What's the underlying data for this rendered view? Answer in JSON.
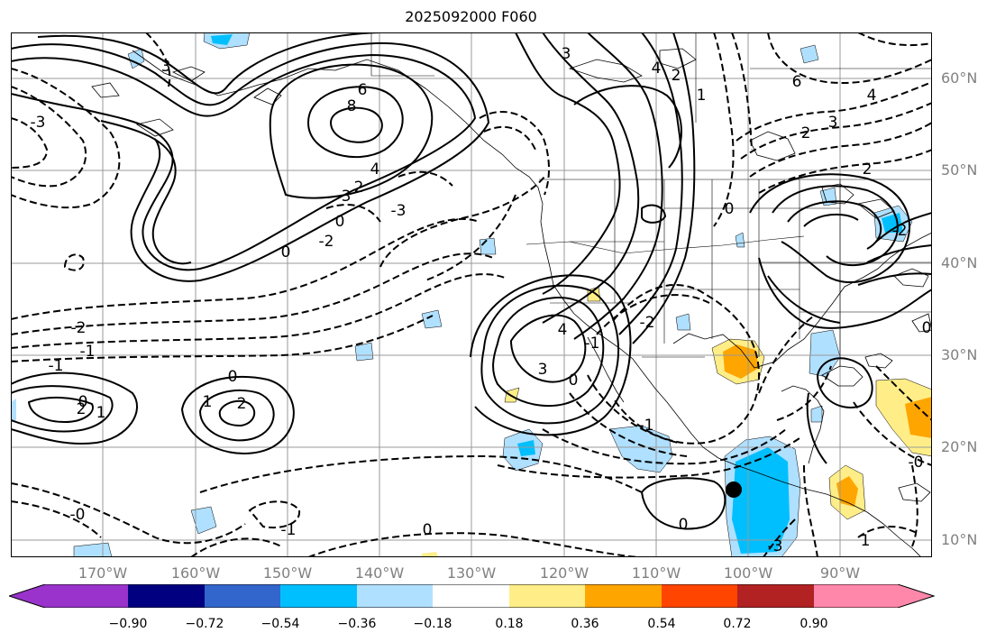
{
  "title": "2025092000 F060",
  "lat_labels": [
    "60°N",
    "50°N",
    "40°N",
    "30°N",
    "20°N",
    "10°N"
  ],
  "lon_labels": [
    "170°W",
    "160°W",
    "150°W",
    "140°W",
    "130°W",
    "120°W",
    "110°W",
    "100°W",
    "90°W"
  ],
  "colorbar": {
    "ticks": [
      "−0.90",
      "−0.72",
      "−0.54",
      "−0.36",
      "−0.18",
      "0.18",
      "0.36",
      "0.54",
      "0.72",
      "0.90"
    ],
    "colors": [
      "#9933cc",
      "#000080",
      "#3366cc",
      "#00bfff",
      "#b0e0ff",
      "#ffffff",
      "#ffee88",
      "#ffa500",
      "#ff4500",
      "#b22222",
      "#ff88aa"
    ]
  },
  "contour_labels": [
    "3",
    "6",
    "8",
    "4",
    "3",
    "2",
    "0",
    "-2",
    "-3",
    "3",
    "4",
    "2",
    "1",
    "0",
    "-2",
    "6",
    "4",
    "3",
    "2",
    "2",
    "0",
    "-2",
    "-1",
    "-1",
    "4",
    "3",
    "-1",
    "0",
    "-2",
    "0",
    "2",
    "1",
    "1",
    "0",
    "2",
    "-3",
    "-1",
    "-0",
    "0",
    "-1",
    "0",
    "-3",
    "-0",
    "1",
    "0"
  ]
}
